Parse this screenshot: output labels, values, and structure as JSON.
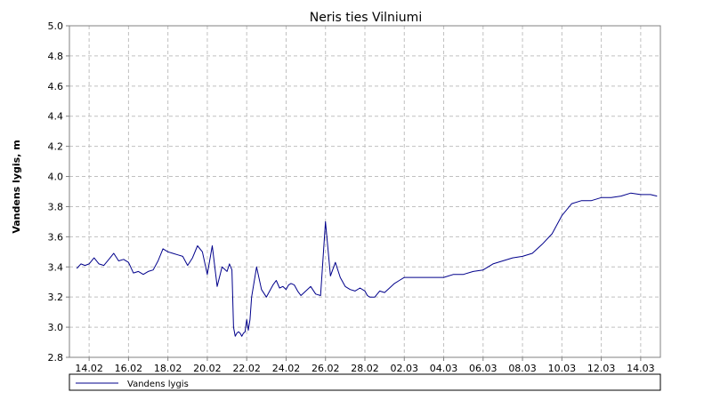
{
  "chart_data": {
    "type": "line",
    "title": "Neris ties Vilniumi",
    "xlabel": "",
    "ylabel": "Vandens lygis, m",
    "ylim": [
      2.8,
      5.0
    ],
    "xlim": [
      "2013-02-13",
      "2013-03-15"
    ],
    "y_ticks": [
      "2.8",
      "3.0",
      "3.2",
      "3.4",
      "3.6",
      "3.8",
      "4.0",
      "4.2",
      "4.4",
      "4.6",
      "4.8",
      "5.0"
    ],
    "x_ticks": [
      {
        "label": "14.02",
        "date": "2013-02-14"
      },
      {
        "label": "16.02",
        "date": "2013-02-16"
      },
      {
        "label": "18.02",
        "date": "2013-02-18"
      },
      {
        "label": "20.02",
        "date": "2013-02-20"
      },
      {
        "label": "22.02",
        "date": "2013-02-22"
      },
      {
        "label": "24.02",
        "date": "2013-02-24"
      },
      {
        "label": "26.02",
        "date": "2013-02-26"
      },
      {
        "label": "28.02",
        "date": "2013-02-28"
      },
      {
        "label": "02.03",
        "date": "2013-03-02"
      },
      {
        "label": "04.03",
        "date": "2013-03-04"
      },
      {
        "label": "06.03",
        "date": "2013-03-06"
      },
      {
        "label": "08.03",
        "date": "2013-03-08"
      },
      {
        "label": "10.03",
        "date": "2013-03-10"
      },
      {
        "label": "12.03",
        "date": "2013-03-12"
      },
      {
        "label": "14.03",
        "date": "2013-03-14"
      }
    ],
    "grid": true,
    "legend_position": "bottom",
    "series": [
      {
        "name": "Vandens lygis",
        "color": "#00008b",
        "x": [
          "2013-02-13 09:00",
          "2013-02-13 14:00",
          "2013-02-13 19:00",
          "2013-02-14 00:00",
          "2013-02-14 06:00",
          "2013-02-14 12:00",
          "2013-02-14 18:00",
          "2013-02-15 00:00",
          "2013-02-15 06:00",
          "2013-02-15 12:00",
          "2013-02-15 18:00",
          "2013-02-16 00:00",
          "2013-02-16 06:00",
          "2013-02-16 12:00",
          "2013-02-16 18:00",
          "2013-02-17 00:00",
          "2013-02-17 06:00",
          "2013-02-17 12:00",
          "2013-02-17 18:00",
          "2013-02-18 00:00",
          "2013-02-18 06:00",
          "2013-02-18 12:00",
          "2013-02-18 18:00",
          "2013-02-19 00:00",
          "2013-02-19 06:00",
          "2013-02-19 12:00",
          "2013-02-19 18:00",
          "2013-02-20 00:00",
          "2013-02-20 06:00",
          "2013-02-20 12:00",
          "2013-02-20 18:00",
          "2013-02-21 00:00",
          "2013-02-21 03:00",
          "2013-02-21 06:00",
          "2013-02-21 08:00",
          "2013-02-21 10:00",
          "2013-02-21 12:00",
          "2013-02-21 14:00",
          "2013-02-21 16:00",
          "2013-02-21 18:00",
          "2013-02-21 20:00",
          "2013-02-21 22:00",
          "2013-02-22 00:00",
          "2013-02-22 02:00",
          "2013-02-22 04:00",
          "2013-02-22 06:00",
          "2013-02-22 12:00",
          "2013-02-22 18:00",
          "2013-02-23 00:00",
          "2013-02-23 04:00",
          "2013-02-23 08:00",
          "2013-02-23 12:00",
          "2013-02-23 16:00",
          "2013-02-23 20:00",
          "2013-02-24 00:00",
          "2013-02-24 03:00",
          "2013-02-24 06:00",
          "2013-02-24 10:00",
          "2013-02-24 14:00",
          "2013-02-24 18:00",
          "2013-02-25 00:00",
          "2013-02-25 06:00",
          "2013-02-25 12:00",
          "2013-02-25 18:00",
          "2013-02-26 00:00",
          "2013-02-26 06:00",
          "2013-02-26 12:00",
          "2013-02-26 18:00",
          "2013-02-27 00:00",
          "2013-02-27 06:00",
          "2013-02-27 12:00",
          "2013-02-27 18:00",
          "2013-02-28 00:00",
          "2013-02-28 03:00",
          "2013-02-28 06:00",
          "2013-02-28 09:00",
          "2013-02-28 12:00",
          "2013-02-28 18:00",
          "2013-03-01 00:00",
          "2013-03-01 06:00",
          "2013-03-01 12:00",
          "2013-03-01 18:00",
          "2013-03-02 00:00",
          "2013-03-02 12:00",
          "2013-03-03 00:00",
          "2013-03-03 12:00",
          "2013-03-04 00:00",
          "2013-03-04 12:00",
          "2013-03-05 00:00",
          "2013-03-05 12:00",
          "2013-03-06 00:00",
          "2013-03-06 12:00",
          "2013-03-07 00:00",
          "2013-03-07 12:00",
          "2013-03-08 00:00",
          "2013-03-08 12:00",
          "2013-03-09 00:00",
          "2013-03-09 12:00",
          "2013-03-10 00:00",
          "2013-03-10 12:00",
          "2013-03-11 00:00",
          "2013-03-11 12:00",
          "2013-03-12 00:00",
          "2013-03-12 12:00",
          "2013-03-13 00:00",
          "2013-03-13 12:00",
          "2013-03-14 00:00",
          "2013-03-14 12:00",
          "2013-03-14 20:00"
        ],
        "y": [
          3.39,
          3.42,
          3.41,
          3.42,
          3.46,
          3.42,
          3.41,
          3.45,
          3.49,
          3.44,
          3.45,
          3.43,
          3.36,
          3.37,
          3.35,
          3.37,
          3.38,
          3.44,
          3.52,
          3.5,
          3.49,
          3.48,
          3.47,
          3.41,
          3.46,
          3.54,
          3.5,
          3.35,
          3.54,
          3.27,
          3.4,
          3.37,
          3.42,
          3.38,
          3.0,
          2.94,
          2.96,
          2.97,
          2.96,
          2.94,
          2.96,
          2.97,
          3.05,
          2.98,
          3.05,
          3.2,
          3.4,
          3.25,
          3.2,
          3.24,
          3.28,
          3.31,
          3.26,
          3.27,
          3.25,
          3.28,
          3.29,
          3.28,
          3.24,
          3.21,
          3.24,
          3.27,
          3.22,
          3.21,
          3.7,
          3.34,
          3.43,
          3.33,
          3.27,
          3.25,
          3.24,
          3.26,
          3.24,
          3.21,
          3.2,
          3.2,
          3.2,
          3.24,
          3.23,
          3.26,
          3.29,
          3.31,
          3.33,
          3.33,
          3.33,
          3.33,
          3.33,
          3.35,
          3.35,
          3.37,
          3.38,
          3.42,
          3.44,
          3.46,
          3.47,
          3.49,
          3.55,
          3.62,
          3.74,
          3.82,
          3.84,
          3.84,
          3.86,
          3.86,
          3.87,
          3.89,
          3.88,
          3.88,
          3.87
        ]
      }
    ]
  }
}
